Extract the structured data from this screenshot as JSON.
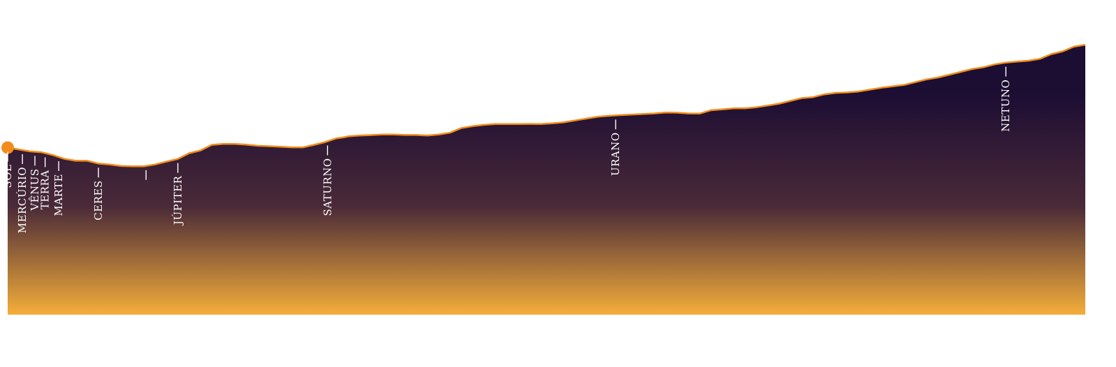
{
  "chart_data": {
    "type": "area",
    "title": "",
    "xlabel": "",
    "ylabel": "",
    "grid": false,
    "colors": {
      "line": "#f28c1c",
      "gradient_top": "#1c0d33",
      "gradient_mid": "#4a2a38",
      "gradient_bottom": "#f4ae3a",
      "start_marker": "#f28c1c"
    },
    "series": [
      {
        "values": [
          [
            0,
            30
          ],
          [
            2,
            28
          ],
          [
            3,
            27.5
          ],
          [
            4,
            26
          ],
          [
            5,
            24
          ],
          [
            6,
            23
          ],
          [
            7,
            23
          ],
          [
            8,
            21.5
          ],
          [
            9,
            21
          ],
          [
            10,
            20.2
          ],
          [
            11,
            20
          ],
          [
            12,
            20
          ],
          [
            13,
            21
          ],
          [
            14,
            22.5
          ],
          [
            15,
            24
          ],
          [
            16,
            27
          ],
          [
            17,
            28.5
          ],
          [
            17.5,
            30
          ],
          [
            18,
            31.5
          ],
          [
            19,
            32
          ],
          [
            20,
            32
          ],
          [
            21,
            31.6
          ],
          [
            22,
            31
          ],
          [
            23,
            30.8
          ],
          [
            24,
            30.5
          ],
          [
            25,
            30.2
          ],
          [
            26,
            30.1
          ],
          [
            27,
            31.5
          ],
          [
            28,
            33
          ],
          [
            29,
            35
          ],
          [
            29.6,
            35.5
          ],
          [
            30,
            36
          ],
          [
            31,
            36.5
          ],
          [
            32,
            36.7
          ],
          [
            33,
            37
          ],
          [
            34,
            37
          ],
          [
            35,
            36.8
          ],
          [
            36,
            36.8
          ],
          [
            37,
            36.5
          ],
          [
            38,
            37
          ],
          [
            39,
            38
          ],
          [
            40,
            40.5
          ],
          [
            41,
            41.5
          ],
          [
            42,
            42.2
          ],
          [
            43,
            42.6
          ],
          [
            44,
            42.6
          ],
          [
            45,
            42.6
          ],
          [
            46,
            42.7
          ],
          [
            47,
            42.6
          ],
          [
            48,
            43
          ],
          [
            49,
            43.5
          ],
          [
            50,
            44.5
          ],
          [
            52,
            46.5
          ],
          [
            53,
            47
          ],
          [
            54,
            47.4
          ],
          [
            56,
            48
          ],
          [
            57,
            48.3
          ],
          [
            58,
            48.8
          ],
          [
            59,
            48.7
          ],
          [
            60,
            48.3
          ],
          [
            61,
            48.2
          ],
          [
            62,
            50
          ],
          [
            63,
            50.5
          ],
          [
            64,
            51
          ],
          [
            65,
            51
          ],
          [
            66,
            51.6
          ],
          [
            67,
            52.5
          ],
          [
            68,
            53.5
          ],
          [
            69,
            55
          ],
          [
            70,
            56.5
          ],
          [
            71,
            57
          ],
          [
            72,
            58.5
          ],
          [
            73,
            59.3
          ],
          [
            74,
            59.5
          ],
          [
            75,
            60
          ],
          [
            76,
            61
          ],
          [
            77,
            62
          ],
          [
            78,
            62.8
          ],
          [
            79,
            63.5
          ],
          [
            80,
            65
          ],
          [
            81,
            66.5
          ],
          [
            82,
            67.5
          ],
          [
            83,
            69
          ],
          [
            84,
            70.5
          ],
          [
            85,
            72
          ],
          [
            86,
            73
          ],
          [
            87,
            74.5
          ],
          [
            88,
            75.5
          ],
          [
            89,
            76
          ],
          [
            90,
            76.5
          ],
          [
            91,
            77.5
          ],
          [
            92,
            80
          ],
          [
            93,
            81.5
          ],
          [
            94,
            84
          ],
          [
            95,
            85
          ]
        ]
      }
    ],
    "planets": [
      {
        "name": "SOL",
        "x": 0
      },
      {
        "name": "MERCÚRIO",
        "x": 1.3
      },
      {
        "name": "VÊNUS",
        "x": 2.4
      },
      {
        "name": "TERRA",
        "x": 3.3
      },
      {
        "name": "MARTE",
        "x": 4.5
      },
      {
        "name": "CERES",
        "x": 8
      },
      {
        "name": "",
        "x": 12.2
      },
      {
        "name": "JÚPITER",
        "x": 15
      },
      {
        "name": "SATURNO",
        "x": 28.2
      },
      {
        "name": "URANO",
        "x": 53.6
      },
      {
        "name": "NETUNO",
        "x": 88
      }
    ]
  }
}
